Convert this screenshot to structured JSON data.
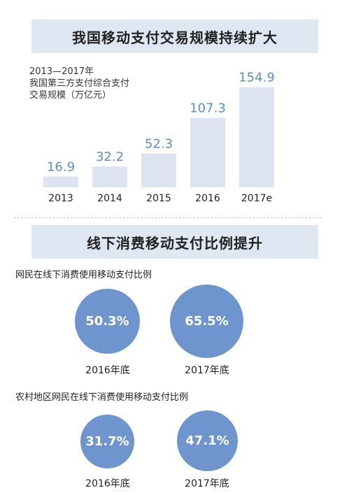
{
  "banner1": {
    "title": "我国移动支付交易规模持续扩大"
  },
  "banner2": {
    "title": "线下消费移动支付比例提升"
  },
  "chart_data": {
    "type": "bar",
    "title_lines": [
      "2013—2017年",
      "我国第三方支付综合支付",
      "交易规模（万亿元）"
    ],
    "categories": [
      "2013",
      "2014",
      "2015",
      "2016",
      "2017e"
    ],
    "values": [
      16.9,
      32.2,
      52.3,
      107.3,
      154.9
    ],
    "value_labels": [
      "16.9",
      "32.2",
      "52.3",
      "107.3",
      "154.9"
    ],
    "ylim": [
      0,
      160
    ],
    "grid": false,
    "colors": {
      "bar": "#dde3f1",
      "value": "#5b8fd0",
      "category": "#222222"
    }
  },
  "section1": {
    "label": "网民在线下消费使用移动支付比例",
    "items": [
      {
        "value": "50.3%",
        "year": "2016年底"
      },
      {
        "value": "65.5%",
        "year": "2017年底"
      }
    ]
  },
  "section2": {
    "label": "农村地区网民在线下消费使用移动支付比例",
    "items": [
      {
        "value": "31.7%",
        "year": "2016年底"
      },
      {
        "value": "47.1%",
        "year": "2017年底"
      }
    ]
  },
  "colors": {
    "banner_bg": "#dfe7f2",
    "circle": "#6f95cf",
    "divider": "#b8c4d8"
  }
}
